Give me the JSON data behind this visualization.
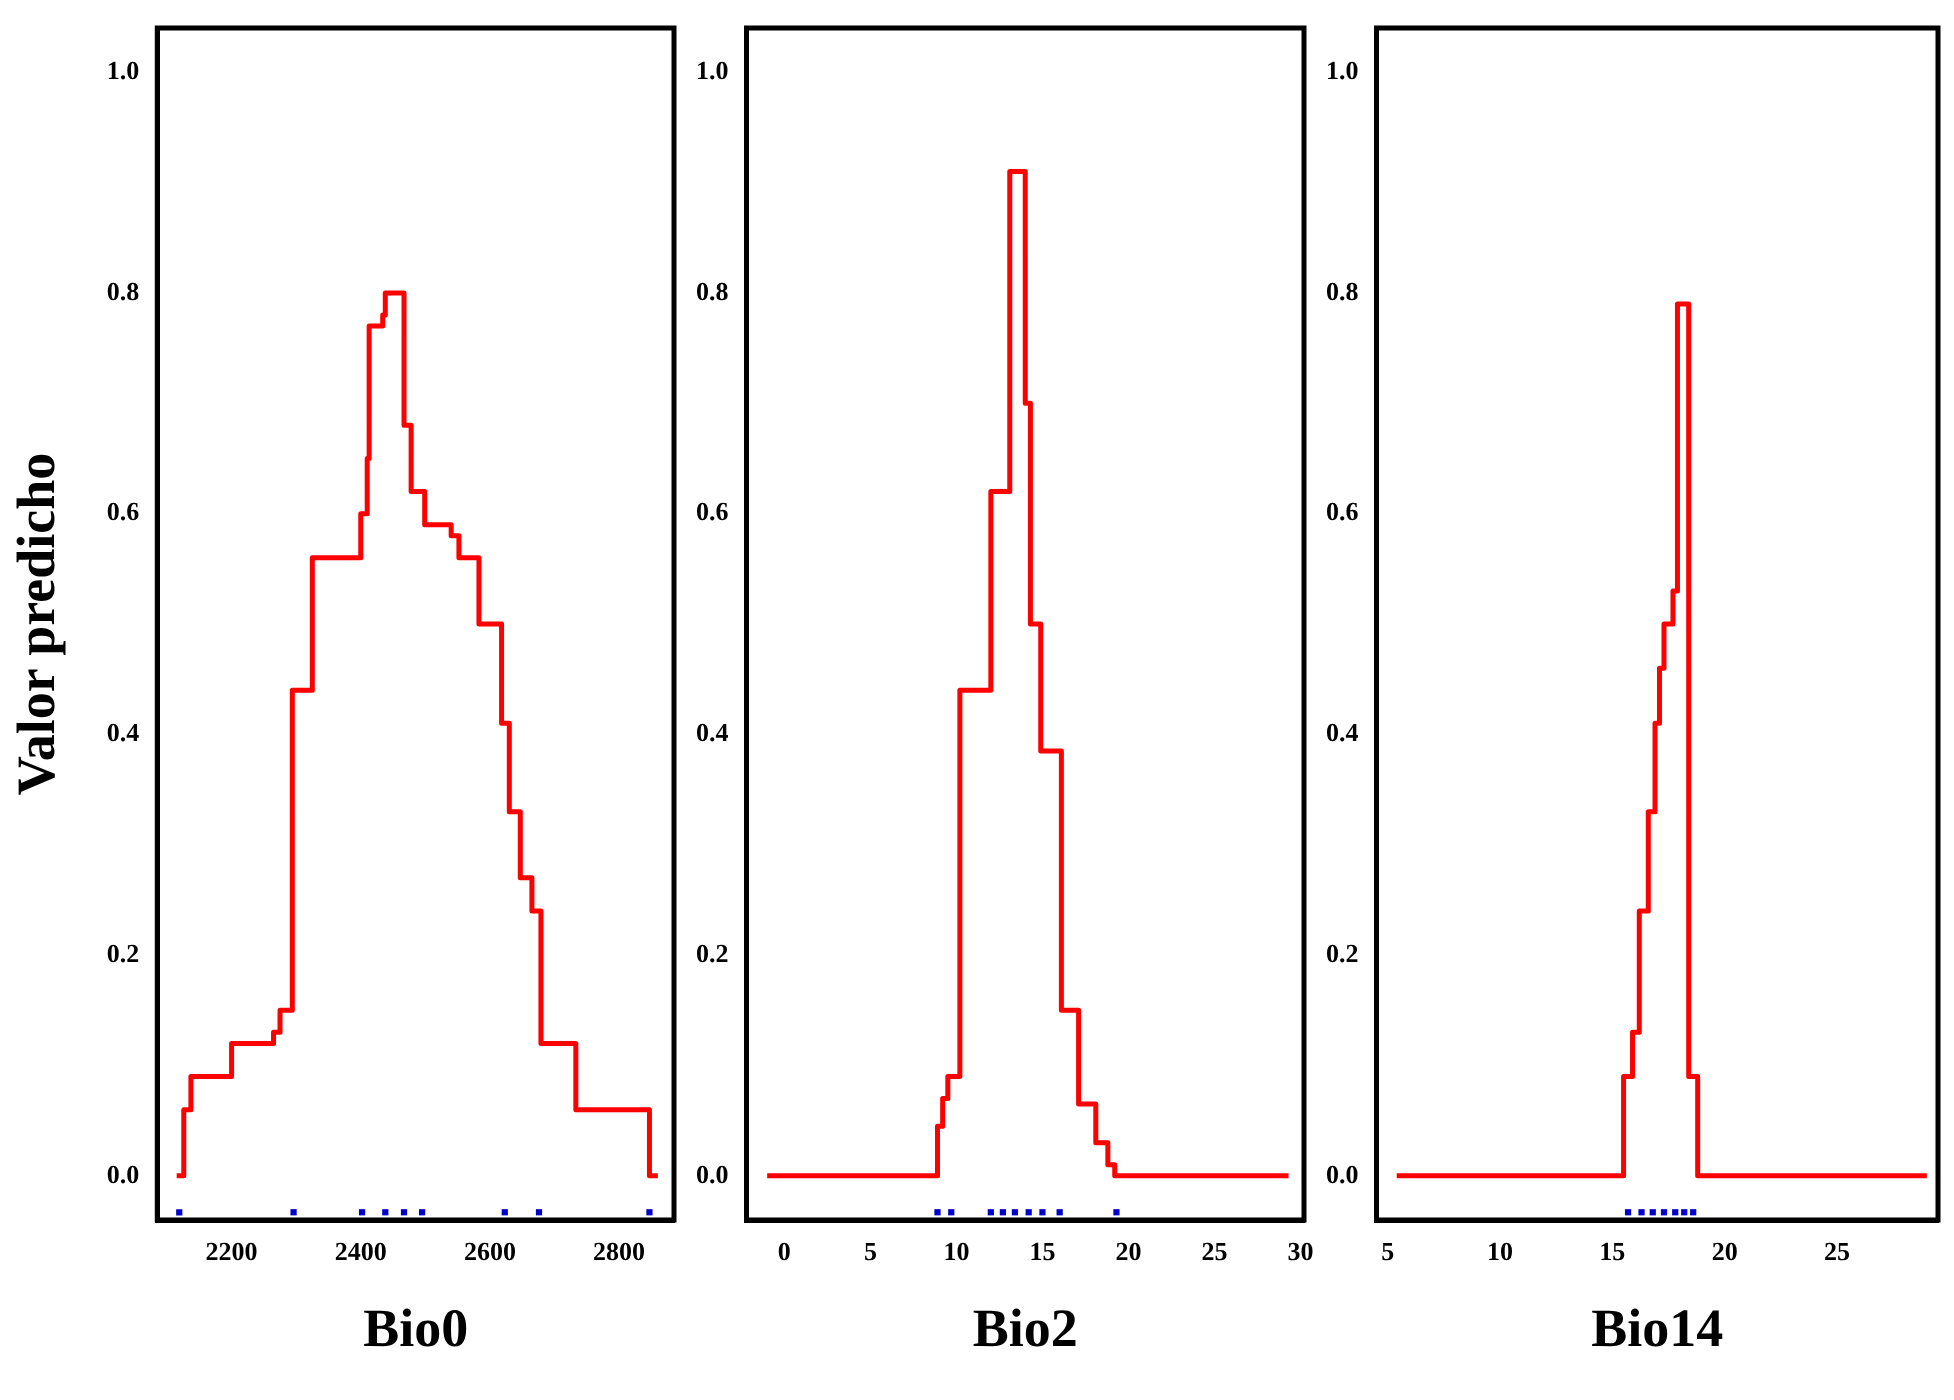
{
  "chart_data": [
    {
      "type": "step",
      "xlabel": "Bio0",
      "ylabel": "Valor predicho",
      "xlim": [
        2085,
        2885
      ],
      "xticks": [
        2200,
        2400,
        2600,
        2800
      ],
      "ylim": [
        -0.04,
        1.04
      ],
      "yticks": [
        {
          "value": 0,
          "label": "0.0"
        },
        {
          "value": 0.2,
          "label": "0.2"
        },
        {
          "value": 0.4,
          "label": "0.4"
        },
        {
          "value": 0.6,
          "label": "0.6"
        },
        {
          "value": 0.8,
          "label": "0.8"
        },
        {
          "value": 1,
          "label": "1.0"
        }
      ],
      "grid": false,
      "legend": false,
      "series": [
        {
          "type": "step",
          "color": "#ff0000",
          "marker": "none",
          "line_style": "solid",
          "x": [
            2115,
            2126,
            2137,
            2200,
            2265,
            2275,
            2294,
            2325,
            2400,
            2410,
            2413,
            2434,
            2438,
            2467,
            2478,
            2499,
            2540,
            2552,
            2583,
            2618,
            2630,
            2647,
            2665,
            2679,
            2733,
            2847,
            2860
          ],
          "values": [
            0,
            0.06,
            0.09,
            0.12,
            0.13,
            0.15,
            0.44,
            0.56,
            0.6,
            0.65,
            0.77,
            0.78,
            0.8,
            0.68,
            0.62,
            0.59,
            0.58,
            0.56,
            0.5,
            0.41,
            0.33,
            0.27,
            0.24,
            0.12,
            0.06,
            0,
            0
          ]
        },
        {
          "type": "scatter",
          "color": "#0000cc",
          "marker": "square",
          "x": [
            2119,
            2296,
            2402,
            2438,
            2467,
            2495,
            2623,
            2676,
            2847
          ],
          "values": [
            -0.033,
            -0.033,
            -0.033,
            -0.033,
            -0.033,
            -0.033,
            -0.033,
            -0.033,
            -0.033
          ]
        }
      ]
    },
    {
      "type": "step",
      "xlabel": "Bio2",
      "xlim": [
        -2.2,
        30.2
      ],
      "xticks": [
        0,
        5,
        10,
        15,
        20,
        25,
        30
      ],
      "ylim": [
        -0.04,
        1.04
      ],
      "yticks": [
        {
          "value": 0,
          "label": "0.0"
        },
        {
          "value": 0.2,
          "label": "0.2"
        },
        {
          "value": 0.4,
          "label": "0.4"
        },
        {
          "value": 0.6,
          "label": "0.6"
        },
        {
          "value": 0.8,
          "label": "0.8"
        },
        {
          "value": 1,
          "label": "1.0"
        }
      ],
      "grid": false,
      "legend": false,
      "series": [
        {
          "type": "step",
          "color": "#ff0000",
          "marker": "none",
          "line_style": "solid",
          "x": [
            -1,
            8.9,
            9.2,
            9.5,
            10.2,
            12.0,
            13.1,
            14.0,
            14.3,
            14.9,
            16.1,
            17.1,
            18.1,
            18.8,
            19.2,
            29.3
          ],
          "values": [
            0,
            0.045,
            0.07,
            0.09,
            0.44,
            0.62,
            0.91,
            0.7,
            0.5,
            0.385,
            0.15,
            0.065,
            0.03,
            0.01,
            0,
            0
          ]
        },
        {
          "type": "scatter",
          "color": "#0000cc",
          "marker": "square",
          "x": [
            8.9,
            9.7,
            12.0,
            12.7,
            13.4,
            14.2,
            15.0,
            16.0,
            19.3
          ],
          "values": [
            -0.033,
            -0.033,
            -0.033,
            -0.033,
            -0.033,
            -0.033,
            -0.033,
            -0.033,
            -0.033
          ]
        }
      ]
    },
    {
      "type": "step",
      "xlabel": "Bio14",
      "xlim": [
        4.5,
        29.5
      ],
      "xticks": [
        5,
        10,
        15,
        20,
        25
      ],
      "ylim": [
        -0.04,
        1.04
      ],
      "yticks": [
        {
          "value": 0,
          "label": "0.0"
        },
        {
          "value": 0.2,
          "label": "0.2"
        },
        {
          "value": 0.4,
          "label": "0.4"
        },
        {
          "value": 0.6,
          "label": "0.6"
        },
        {
          "value": 0.8,
          "label": "0.8"
        },
        {
          "value": 1,
          "label": "1.0"
        }
      ],
      "grid": false,
      "legend": false,
      "series": [
        {
          "type": "step",
          "color": "#ff0000",
          "marker": "none",
          "line_style": "solid",
          "x": [
            5.4,
            15.5,
            15.9,
            16.2,
            16.6,
            16.9,
            17.1,
            17.3,
            17.7,
            17.9,
            18.4,
            18.8,
            29
          ],
          "values": [
            0,
            0.09,
            0.13,
            0.24,
            0.33,
            0.41,
            0.46,
            0.5,
            0.53,
            0.79,
            0.09,
            0,
            0
          ]
        },
        {
          "type": "scatter",
          "color": "#0000cc",
          "marker": "square",
          "x": [
            15.7,
            16.3,
            16.8,
            17.3,
            17.8,
            18.2,
            18.6
          ],
          "values": [
            -0.033,
            -0.033,
            -0.033,
            -0.033,
            -0.033,
            -0.033,
            -0.033
          ]
        }
      ]
    }
  ]
}
